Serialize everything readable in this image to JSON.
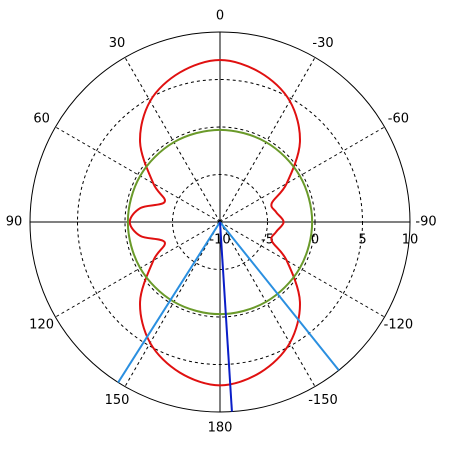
{
  "chart_data": {
    "type": "polar",
    "rlim": [
      -10,
      10
    ],
    "rticks": [
      -10,
      -5,
      0,
      5,
      10
    ],
    "angle_ticks": [
      0,
      30,
      60,
      90,
      120,
      150,
      180,
      -150,
      -120,
      -90,
      -60,
      -30
    ],
    "grid": true,
    "series": [
      {
        "color": "#e01010",
        "x": [
          0,
          15,
          30,
          45,
          60,
          70,
          80,
          90,
          100,
          110,
          120,
          135,
          150,
          165,
          180,
          -165,
          -150,
          -135,
          -120,
          -110,
          -100,
          -90,
          -80,
          -70,
          -60,
          -45,
          -30,
          -15
        ],
        "values": [
          7.05,
          6.3,
          4.7,
          1.9,
          -1.9,
          -3.8,
          -1.5,
          -0.5,
          -1.5,
          -3.8,
          -1.9,
          1.9,
          4.7,
          6.4,
          7.2,
          6.4,
          4.7,
          1.9,
          -1.9,
          -4.2,
          -4.0,
          -3.3,
          -4.0,
          -4.2,
          -1.9,
          1.9,
          4.7,
          6.3
        ]
      },
      {
        "color": "#6a9a2a",
        "x": [
          0,
          30,
          60,
          90,
          120,
          150,
          180,
          -150,
          -120,
          -90,
          -60,
          -30
        ],
        "values": [
          -0.3,
          -0.3,
          -0.3,
          -0.3,
          -0.3,
          -0.3,
          -0.3,
          -0.3,
          -0.3,
          -0.3,
          -0.3,
          -0.3
        ]
      },
      {
        "color": "#2a8fe0",
        "x": [
          147.6,
          147.6
        ],
        "values": [
          -10,
          10
        ]
      },
      {
        "color": "#2a8fe0",
        "x": [
          -141.3,
          -141.3
        ],
        "values": [
          -10,
          10
        ]
      },
      {
        "color": "#0a1ec8",
        "x": [
          -176.4,
          -176.4
        ],
        "values": [
          -10,
          10
        ]
      }
    ]
  }
}
